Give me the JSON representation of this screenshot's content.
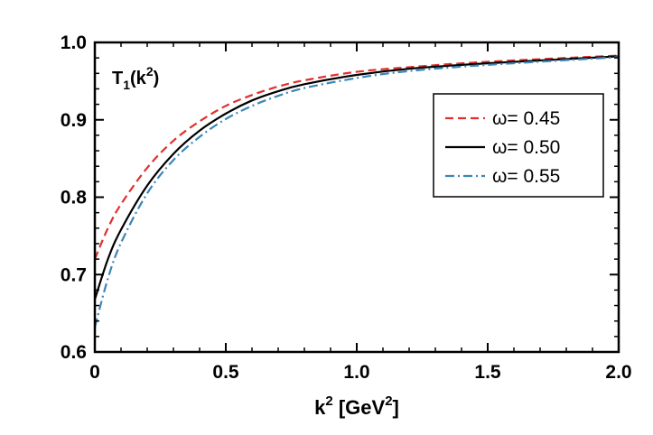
{
  "chart_data": {
    "type": "line",
    "title": "T1(k2)",
    "title_parts": {
      "base": "T",
      "sub": "1",
      "open": "(k",
      "sup": "2",
      "close": ")"
    },
    "xlabel": "k2 [GeV2]",
    "xlabel_parts": {
      "k": "k",
      "sup1": "2",
      "mid": " [GeV",
      "sup2": "2",
      "end": "]"
    },
    "ylabel": "",
    "xlim": [
      0,
      2.0
    ],
    "ylim": [
      0.6,
      1.0
    ],
    "x_ticks": [
      "0",
      "0.5",
      "1.0",
      "1.5",
      "2.0"
    ],
    "x_tick_values": [
      0,
      0.5,
      1.0,
      1.5,
      2.0
    ],
    "y_ticks": [
      "0.6",
      "0.7",
      "0.8",
      "0.9",
      "1.0"
    ],
    "y_tick_values": [
      0.6,
      0.7,
      0.8,
      0.9,
      1.0
    ],
    "grid": false,
    "legend_position": "right",
    "x": [
      0,
      0.05,
      0.1,
      0.2,
      0.3,
      0.4,
      0.5,
      0.6,
      0.7,
      0.8,
      1.0,
      1.2,
      1.5,
      2.0
    ],
    "series": [
      {
        "name": "ω= 0.45",
        "color": "#e03030",
        "dash": "dashed",
        "values": [
          0.72,
          0.76,
          0.791,
          0.838,
          0.873,
          0.898,
          0.918,
          0.932,
          0.943,
          0.951,
          0.962,
          0.968,
          0.975,
          0.983
        ]
      },
      {
        "name": "ω= 0.50",
        "color": "#000000",
        "dash": "solid",
        "values": [
          0.668,
          0.72,
          0.758,
          0.815,
          0.856,
          0.886,
          0.908,
          0.925,
          0.937,
          0.946,
          0.958,
          0.966,
          0.973,
          0.982
        ]
      },
      {
        "name": "ω= 0.55",
        "color": "#3a86b8",
        "dash": "dashdot",
        "values": [
          0.632,
          0.695,
          0.741,
          0.805,
          0.848,
          0.878,
          0.901,
          0.918,
          0.931,
          0.941,
          0.954,
          0.963,
          0.971,
          0.981
        ]
      }
    ]
  }
}
